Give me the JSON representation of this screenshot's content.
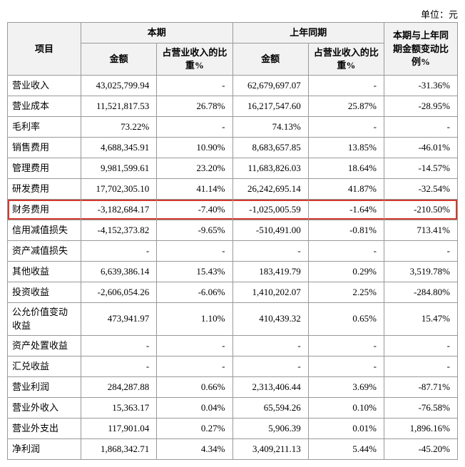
{
  "unit_label": "单位：元",
  "headers": {
    "item": "项目",
    "current_period": "本期",
    "prior_period": "上年同期",
    "change": "本期与上年同期金额变动比例%",
    "amount": "金额",
    "pct_revenue": "占营业收入的比重%"
  },
  "highlight_color": "#d43a2f",
  "rows": [
    {
      "item": "营业收入",
      "cur_amt": "43,025,799.94",
      "cur_pct": "-",
      "pri_amt": "62,679,697.07",
      "pri_pct": "-",
      "chg": "-31.36%",
      "highlight": false
    },
    {
      "item": "营业成本",
      "cur_amt": "11,521,817.53",
      "cur_pct": "26.78%",
      "pri_amt": "16,217,547.60",
      "pri_pct": "25.87%",
      "chg": "-28.95%",
      "highlight": false
    },
    {
      "item": "毛利率",
      "cur_amt": "73.22%",
      "cur_pct": "-",
      "pri_amt": "74.13%",
      "pri_pct": "-",
      "chg": "-",
      "highlight": false
    },
    {
      "item": "销售费用",
      "cur_amt": "4,688,345.91",
      "cur_pct": "10.90%",
      "pri_amt": "8,683,657.85",
      "pri_pct": "13.85%",
      "chg": "-46.01%",
      "highlight": false
    },
    {
      "item": "管理费用",
      "cur_amt": "9,981,599.61",
      "cur_pct": "23.20%",
      "pri_amt": "11,683,826.03",
      "pri_pct": "18.64%",
      "chg": "-14.57%",
      "highlight": false
    },
    {
      "item": "研发费用",
      "cur_amt": "17,702,305.10",
      "cur_pct": "41.14%",
      "pri_amt": "26,242,695.14",
      "pri_pct": "41.87%",
      "chg": "-32.54%",
      "highlight": false
    },
    {
      "item": "财务费用",
      "cur_amt": "-3,182,684.17",
      "cur_pct": "-7.40%",
      "pri_amt": "-1,025,005.59",
      "pri_pct": "-1.64%",
      "chg": "-210.50%",
      "highlight": true
    },
    {
      "item": "信用减值损失",
      "cur_amt": "-4,152,373.82",
      "cur_pct": "-9.65%",
      "pri_amt": "-510,491.00",
      "pri_pct": "-0.81%",
      "chg": "713.41%",
      "highlight": false
    },
    {
      "item": "资产减值损失",
      "cur_amt": "-",
      "cur_pct": "-",
      "pri_amt": "-",
      "pri_pct": "-",
      "chg": "-",
      "highlight": false
    },
    {
      "item": "其他收益",
      "cur_amt": "6,639,386.14",
      "cur_pct": "15.43%",
      "pri_amt": "183,419.79",
      "pri_pct": "0.29%",
      "chg": "3,519.78%",
      "highlight": false
    },
    {
      "item": "投资收益",
      "cur_amt": "-2,606,054.26",
      "cur_pct": "-6.06%",
      "pri_amt": "1,410,202.07",
      "pri_pct": "2.25%",
      "chg": "-284.80%",
      "highlight": false
    },
    {
      "item": "公允价值变动收益",
      "cur_amt": "473,941.97",
      "cur_pct": "1.10%",
      "pri_amt": "410,439.32",
      "pri_pct": "0.65%",
      "chg": "15.47%",
      "highlight": false
    },
    {
      "item": "资产处置收益",
      "cur_amt": "-",
      "cur_pct": "-",
      "pri_amt": "-",
      "pri_pct": "-",
      "chg": "-",
      "highlight": false
    },
    {
      "item": "汇兑收益",
      "cur_amt": "-",
      "cur_pct": "-",
      "pri_amt": "-",
      "pri_pct": "-",
      "chg": "-",
      "highlight": false
    },
    {
      "item": "营业利润",
      "cur_amt": "284,287.88",
      "cur_pct": "0.66%",
      "pri_amt": "2,313,406.44",
      "pri_pct": "3.69%",
      "chg": "-87.71%",
      "highlight": false
    },
    {
      "item": "营业外收入",
      "cur_amt": "15,363.17",
      "cur_pct": "0.04%",
      "pri_amt": "65,594.26",
      "pri_pct": "0.10%",
      "chg": "-76.58%",
      "highlight": false
    },
    {
      "item": "营业外支出",
      "cur_amt": "117,901.04",
      "cur_pct": "0.27%",
      "pri_amt": "5,906.39",
      "pri_pct": "0.01%",
      "chg": "1,896.16%",
      "highlight": false
    },
    {
      "item": "净利润",
      "cur_amt": "1,868,342.71",
      "cur_pct": "4.34%",
      "pri_amt": "3,409,211.13",
      "pri_pct": "5.44%",
      "chg": "-45.20%",
      "highlight": false
    }
  ]
}
